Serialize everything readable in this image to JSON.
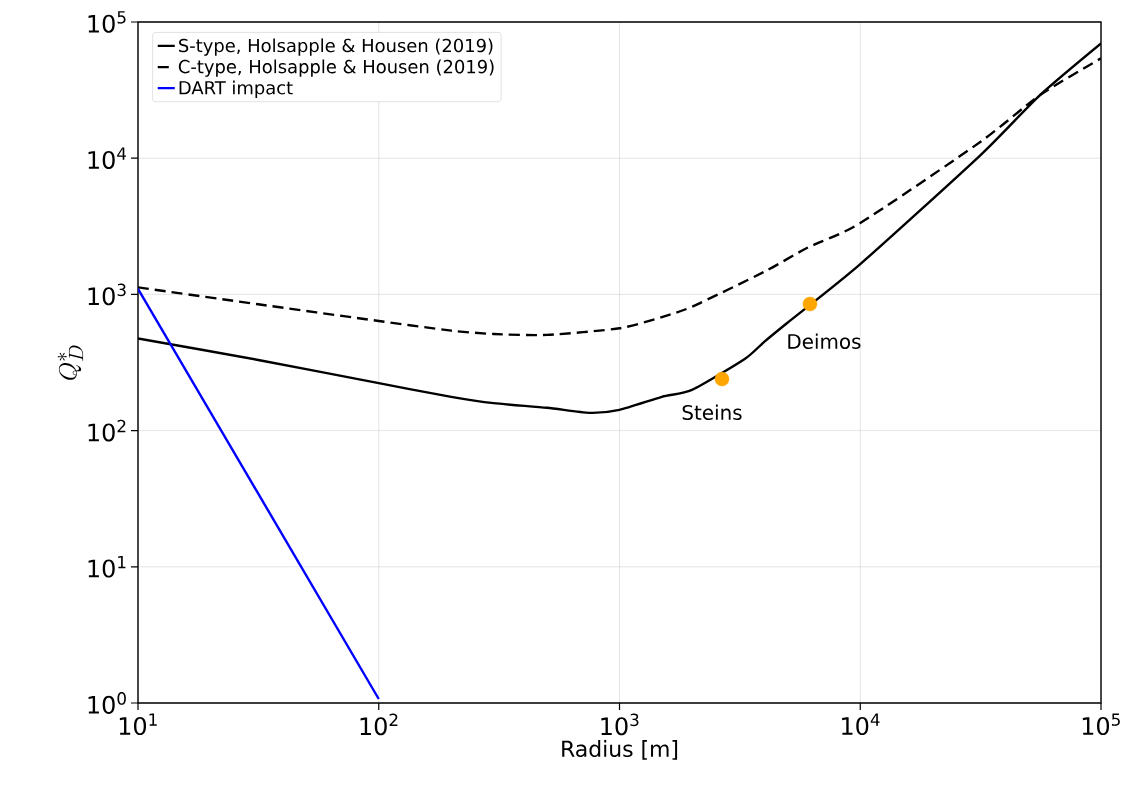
{
  "chart_data": {
    "type": "line",
    "xlabel": "Radius [m]",
    "ylabel": "Q_D^*",
    "log": "xy",
    "xlim": [
      10,
      100000
    ],
    "ylim": [
      1,
      100000
    ],
    "xticks": [
      {
        "value": 10,
        "label": "10$^{1}$"
      },
      {
        "value": 100,
        "label": "10$^{2}$"
      },
      {
        "value": 1000,
        "label": "10$^{3}$"
      },
      {
        "value": 10000,
        "label": "10$^{4}$"
      },
      {
        "value": 100000,
        "label": "10$^{5}$"
      }
    ],
    "yticks": [
      {
        "value": 1,
        "label": "10$^{0}$"
      },
      {
        "value": 10,
        "label": "10$^{1}$"
      },
      {
        "value": 100,
        "label": "10$^{2}$"
      },
      {
        "value": 1000,
        "label": "10$^{3}$"
      },
      {
        "value": 10000,
        "label": "10$^{4}$"
      },
      {
        "value": 100000,
        "label": "10$^{5}$"
      }
    ],
    "grid": true,
    "legend": "top left",
    "series": [
      {
        "name": "S-type, Holsapple & Housen (2019)",
        "color": "#000000",
        "line_style": "solid",
        "x": [
          10,
          31.6,
          100,
          200,
          300,
          500,
          750,
          1000,
          1500,
          2000,
          3300,
          4000,
          5000,
          10000,
          31600,
          55800,
          100000
        ],
        "values": [
          475,
          330,
          223,
          177,
          159,
          147,
          135,
          142,
          177,
          199,
          334,
          450,
          622,
          1670,
          10550,
          29100,
          69700
        ]
      },
      {
        "name": "C-type, Holsapple & Housen (2019)",
        "color": "#000000",
        "line_style": "dashed",
        "x": [
          10,
          31.6,
          100,
          200,
          300,
          500,
          1000,
          1500,
          2000,
          4000,
          6000,
          10000,
          31600,
          55800,
          100000
        ],
        "values": [
          1127,
          846,
          638,
          542,
          512,
          504,
          564,
          682,
          812,
          1468,
          2190,
          3340,
          13200,
          29100,
          54100
        ]
      },
      {
        "name": "DART impact",
        "color": "#0000ff",
        "line_style": "solid",
        "x": [
          10,
          100
        ],
        "values": [
          1100,
          1.07
        ]
      },
      {
        "type": "scatter",
        "color": "#ffa500",
        "marker": "circle",
        "x": [
          2665,
          6180
        ],
        "values": [
          239,
          850
        ]
      }
    ],
    "annotations": [
      {
        "text": "Steins",
        "x": 2665,
        "y": 239
      },
      {
        "text": "Deimos",
        "x": 6180,
        "y": 850
      }
    ]
  }
}
